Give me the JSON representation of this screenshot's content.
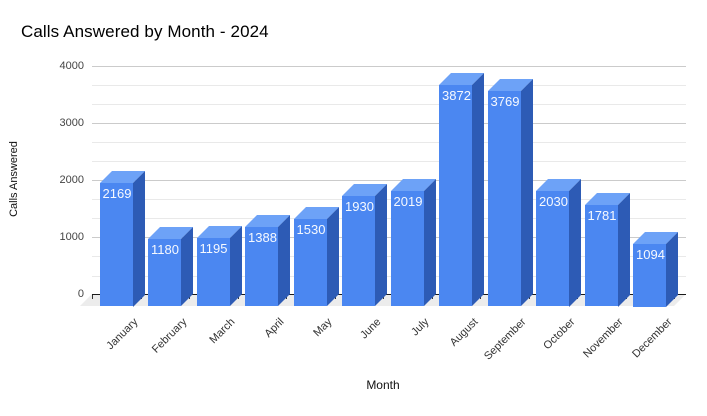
{
  "title": "Calls Answered by Month - 2024",
  "chart_data": {
    "type": "bar",
    "style": "3d-column",
    "title": "Calls Answered by Month - 2024",
    "xlabel": "Month",
    "ylabel": "Calls Answered",
    "categories": [
      "January",
      "February",
      "March",
      "April",
      "May",
      "June",
      "July",
      "August",
      "September",
      "October",
      "November",
      "December"
    ],
    "values": [
      2169,
      1180,
      1195,
      1388,
      1530,
      1930,
      2019,
      3872,
      3769,
      2030,
      1781,
      1094
    ],
    "value_labels_shown": true,
    "ylim": [
      0,
      4000
    ],
    "yticks": [
      "0",
      "1000",
      "2000",
      "3000",
      "4000"
    ],
    "ytick_values": [
      0,
      1000,
      2000,
      3000,
      4000
    ],
    "grid": "horizontal major and minor (minor at thirds)",
    "legend": "none",
    "colors": {
      "bar_front": "#4b87f1",
      "bar_top": "#6da2f7",
      "bar_side": "#2d5bb5",
      "value_label_text": "#ffffff",
      "gridline_major": "#cbcbcb",
      "gridline_minor": "#e9e9e9",
      "axis_line": "#1a1a1a",
      "floor": "#ececec",
      "title_text": "#000000",
      "tick_text": "#444444",
      "background": "#ffffff"
    }
  }
}
